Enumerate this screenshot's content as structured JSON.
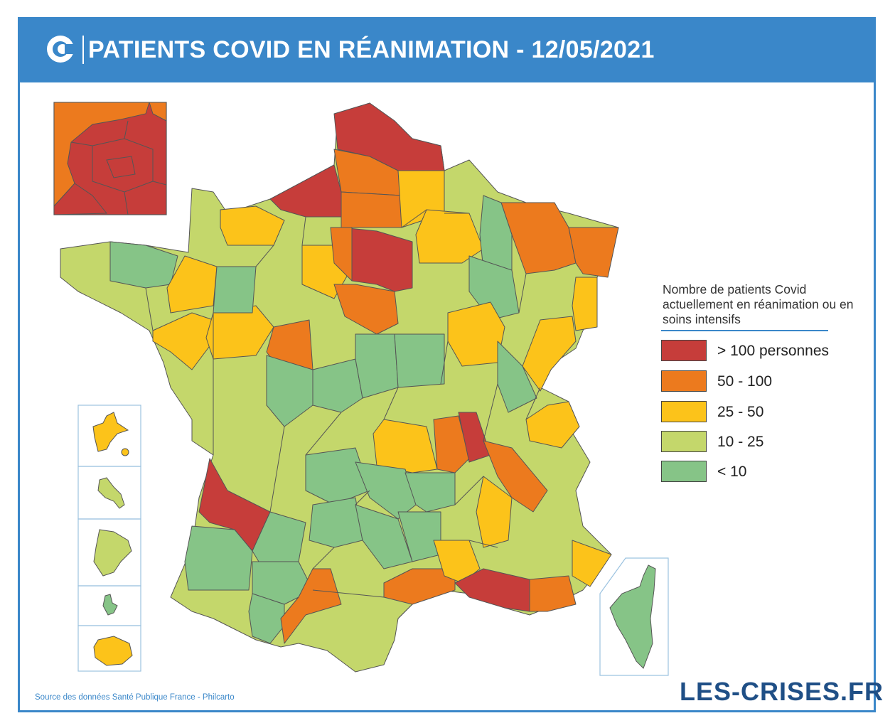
{
  "header": {
    "title": "PATIENTS COVID EN RÉANIMATION - 12/05/2021"
  },
  "colors": {
    "header_blue": "#3a87c9",
    "very_high": "#c63d3a",
    "high": "#ec7a1e",
    "medium": "#fcc31a",
    "low": "#c4d76b",
    "very_low": "#86c487"
  },
  "legend": {
    "title": "Nombre de patients Covid actuellement en réanimation ou en soins intensifs",
    "items": [
      {
        "label": "> 100 personnes",
        "color": "#c63d3a"
      },
      {
        "label": "50 - 100",
        "color": "#ec7a1e"
      },
      {
        "label": "25 - 50",
        "color": "#fcc31a"
      },
      {
        "label": "10 - 25",
        "color": "#c4d76b"
      },
      {
        "label": "< 10",
        "color": "#86c487"
      }
    ]
  },
  "footer": {
    "source": "Source des données Santé Publique France - Philcarto",
    "brand": "LES-CRISES.FR"
  }
}
